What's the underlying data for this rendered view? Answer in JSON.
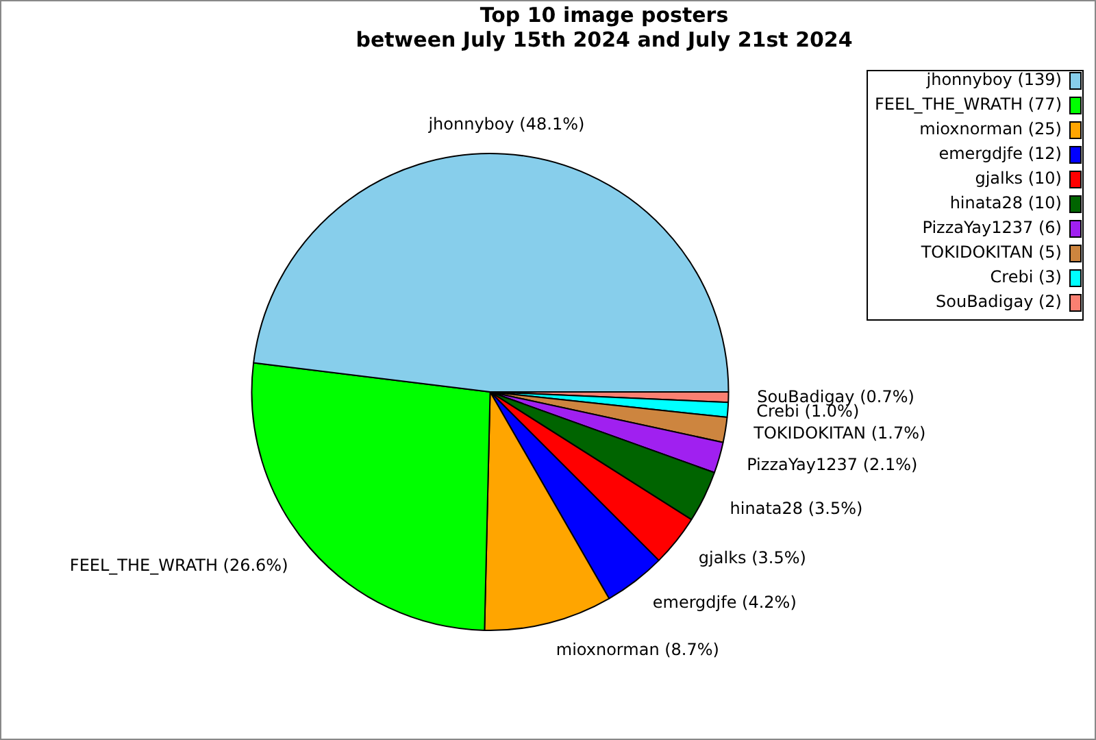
{
  "chart_data": {
    "type": "pie",
    "title": "Top 10 image posters\nbetween July 15th 2024 and July 21st 2024",
    "categories": [
      "jhonnyboy (139)",
      "FEEL_THE_WRATH (77)",
      "mioxnorman (25)",
      "emergdjfe (12)",
      "gjalks (10)",
      "hinata28 (10)",
      "PizzaYay1237 (6)",
      "TOKIDOKITAN (5)",
      "Crebi (3)",
      "SouBadigay (2)"
    ],
    "values": [
      48.1,
      26.6,
      8.7,
      4.2,
      3.5,
      3.5,
      2.1,
      1.7,
      1.0,
      0.7
    ],
    "value_labels": [
      "jhonnyboy (48.1%)",
      "FEEL_THE_WRATH (26.6%)",
      "mioxnorman (8.7%)",
      "emergdjfe (4.2%)",
      "gjalks (3.5%)",
      "hinata28 (3.5%)",
      "PizzaYay1237 (2.1%)",
      "TOKIDOKITAN (1.7%)",
      "Crebi (1.0%)",
      "SouBadigay (0.7%)"
    ],
    "colors": [
      "#87ceeb",
      "#00ff00",
      "#ffa500",
      "#0000ff",
      "#ff0000",
      "#006400",
      "#a020f0",
      "#cd853f",
      "#00ffff",
      "#fa8072"
    ],
    "legend": "top right"
  }
}
